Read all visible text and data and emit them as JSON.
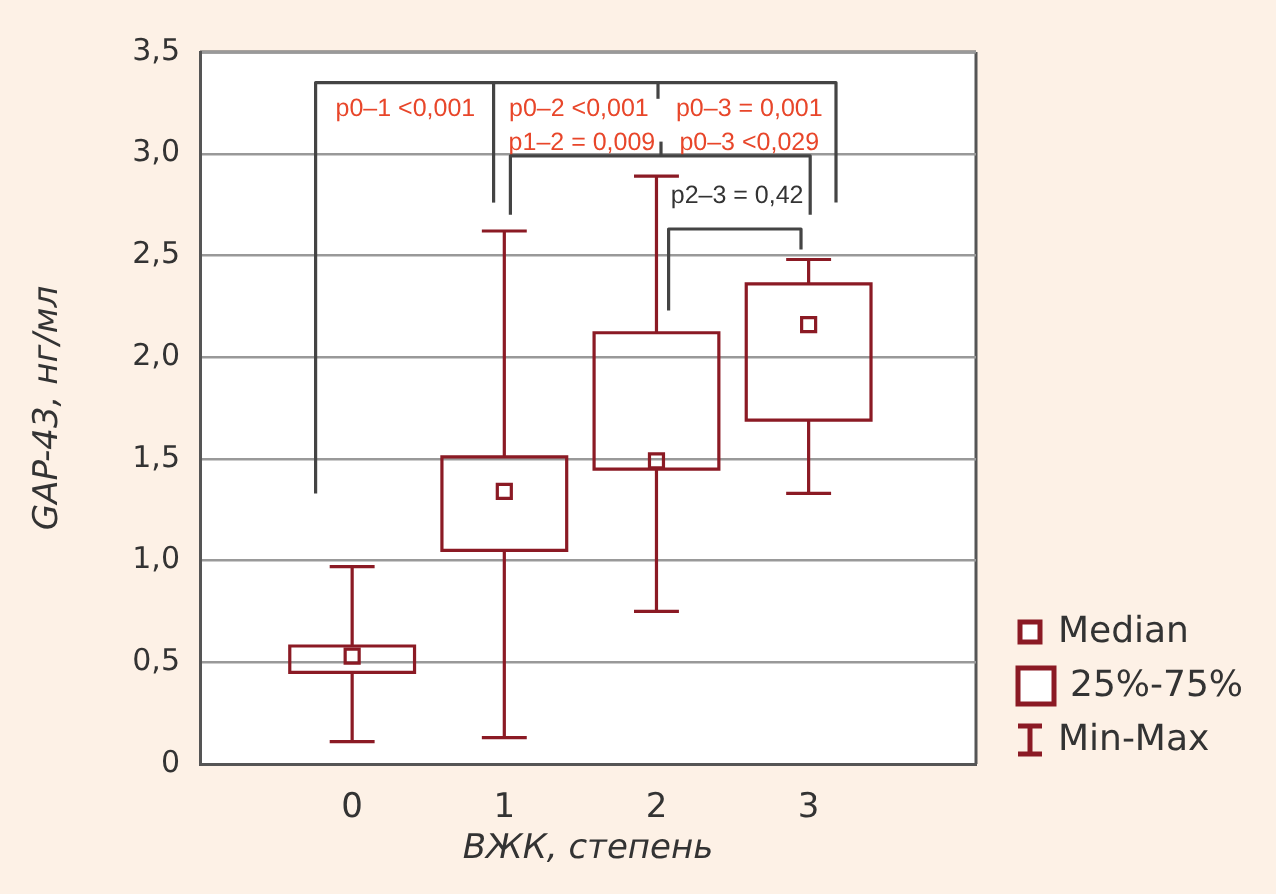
{
  "chart_data": {
    "type": "box",
    "xlabel": "ВЖК, степень",
    "ylabel": "GAP-43, нг/мл",
    "categories": [
      "0",
      "1",
      "2",
      "3"
    ],
    "color": "#8b1a24",
    "boxes": [
      {
        "low": 0.11,
        "q1": 0.45,
        "median": 0.53,
        "q3": 0.58,
        "high": 0.97
      },
      {
        "low": 0.13,
        "q1": 1.05,
        "median": 1.34,
        "q3": 1.51,
        "high": 2.62
      },
      {
        "low": 0.75,
        "q1": 1.45,
        "median": 1.49,
        "q3": 2.12,
        "high": 2.89
      },
      {
        "low": 1.33,
        "q1": 1.69,
        "median": 2.16,
        "q3": 2.36,
        "high": 2.48
      }
    ],
    "ylim": [
      0,
      3.5
    ],
    "yticks": [
      0,
      {
        "value": 0.5,
        "label": "0,5"
      },
      {
        "value": 1,
        "label": "1,0"
      },
      {
        "value": 1.5,
        "label": "1,5"
      },
      {
        "value": 2,
        "label": "2,0"
      },
      {
        "value": 2.5,
        "label": "2,5"
      },
      {
        "value": 3,
        "label": "3,0"
      },
      {
        "value": 3.5,
        "label": "3,5"
      }
    ],
    "grid": "y",
    "annotations": [
      "p0–1 <0,001",
      "p0–2 <0,001",
      "p0–3 = 0,001",
      "p1–2 = 0,009",
      "p0–3 <0,029",
      "p2–3 = 0,42",
      "Median",
      "25%-75%",
      "Min-Max"
    ]
  }
}
